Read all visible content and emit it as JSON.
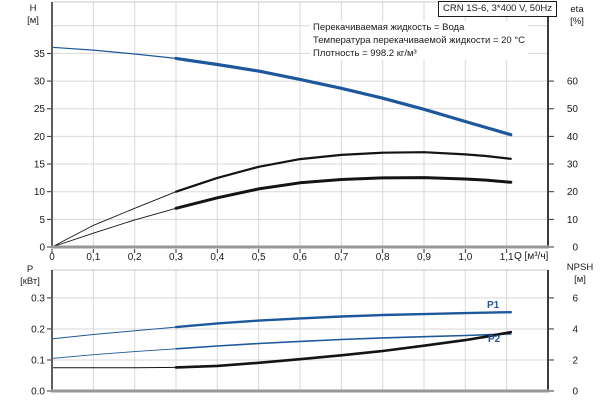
{
  "colors": {
    "curve_blue": "#1e589c",
    "curve_black": "#141414",
    "grid": "#d8d8d8",
    "axis": "#5e5e5e",
    "text": "#1a1a1a"
  },
  "chart_data": [
    {
      "type": "line",
      "name": "head-efficiency-chart",
      "title": "CRN 1S-6, 3*400 V, 50Hz",
      "annotations": [
        "Перекачиваемая жидкость = Вода",
        "Температура перекачиваемой жидкости = 20 °C",
        "Плотность = 998.2 кг/м³"
      ],
      "xlabel": "Q [м³/ч]",
      "x_range": [
        0,
        1.2
      ],
      "x_tick_values": [
        0,
        0.1,
        0.2,
        0.3,
        0.4,
        0.5,
        0.6,
        0.7,
        0.8,
        0.9,
        1.0,
        1.1
      ],
      "x_tick_labels": [
        "0",
        "0,1",
        "0,2",
        "0,3",
        "0,4",
        "0,5",
        "0,6",
        "0,7",
        "0,8",
        "0,9",
        "1,0",
        "1,1"
      ],
      "left_axis": {
        "title": [
          "H",
          "[м]"
        ],
        "unit": "м",
        "range": [
          0,
          44.3
        ],
        "tick_values": [
          0,
          5,
          10,
          15,
          20,
          25,
          30,
          35
        ],
        "tick_labels": [
          "0",
          "5",
          "10",
          "15",
          "20",
          "25",
          "30",
          "35"
        ],
        "grid_values": [
          5,
          10,
          15,
          20,
          25,
          30,
          35,
          40
        ]
      },
      "right_axis": {
        "title": [
          "eta",
          "[%]"
        ],
        "unit": "%",
        "range": [
          0,
          88.6
        ],
        "tick_values": [
          0,
          10,
          20,
          30,
          40,
          50,
          60
        ],
        "tick_labels": [
          "0",
          "10",
          "20",
          "30",
          "40",
          "50",
          "60"
        ]
      },
      "series": [
        {
          "name": "H",
          "axis": "left",
          "color": "#1e589c",
          "thick_from": 0.3,
          "points": [
            [
              0,
              36.1
            ],
            [
              0.1,
              35.6
            ],
            [
              0.2,
              34.9
            ],
            [
              0.3,
              34.1
            ],
            [
              0.4,
              33.0
            ],
            [
              0.5,
              31.8
            ],
            [
              0.6,
              30.3
            ],
            [
              0.7,
              28.7
            ],
            [
              0.8,
              26.9
            ],
            [
              0.9,
              24.9
            ],
            [
              1.0,
              22.7
            ],
            [
              1.05,
              21.6
            ],
            [
              1.11,
              20.3
            ]
          ]
        },
        {
          "name": "eta1",
          "axis": "right",
          "color": "#141414",
          "thick_from": 0.3,
          "points": [
            [
              0,
              0
            ],
            [
              0.1,
              7.8
            ],
            [
              0.2,
              14.0
            ],
            [
              0.3,
              20.0
            ],
            [
              0.4,
              25.0
            ],
            [
              0.5,
              29.0
            ],
            [
              0.6,
              31.8
            ],
            [
              0.7,
              33.3
            ],
            [
              0.8,
              34.1
            ],
            [
              0.9,
              34.3
            ],
            [
              1.0,
              33.5
            ],
            [
              1.05,
              32.9
            ],
            [
              1.11,
              31.9
            ]
          ]
        },
        {
          "name": "eta2",
          "axis": "right",
          "color": "#141414",
          "thick_from": 0.3,
          "points": [
            [
              0,
              0
            ],
            [
              0.1,
              5.0
            ],
            [
              0.2,
              9.8
            ],
            [
              0.3,
              14.0
            ],
            [
              0.4,
              17.8
            ],
            [
              0.5,
              21.0
            ],
            [
              0.6,
              23.2
            ],
            [
              0.7,
              24.4
            ],
            [
              0.8,
              25.0
            ],
            [
              0.9,
              25.1
            ],
            [
              1.0,
              24.6
            ],
            [
              1.05,
              24.2
            ],
            [
              1.11,
              23.4
            ]
          ]
        }
      ]
    },
    {
      "type": "line",
      "name": "power-npsh-chart",
      "x_range": [
        0,
        1.2
      ],
      "x_tick_values": [
        0,
        0.1,
        0.2,
        0.3,
        0.4,
        0.5,
        0.6,
        0.7,
        0.8,
        0.9,
        1.0,
        1.1
      ],
      "x_tick_labels": [],
      "left_axis": {
        "title": [
          "P",
          "[кВт]"
        ],
        "unit": "кВт",
        "range": [
          0,
          0.39
        ],
        "tick_values": [
          0,
          0.1,
          0.2,
          0.3
        ],
        "tick_labels": [
          "0.0",
          "0.1",
          "0.2",
          "0.3"
        ],
        "grid_values": [
          0.1,
          0.2,
          0.3
        ]
      },
      "right_axis": {
        "title": [
          "NPSH",
          "[м]"
        ],
        "unit": "м",
        "range": [
          0,
          7.8
        ],
        "tick_values": [
          0,
          2,
          4,
          6
        ],
        "tick_labels": [
          "0",
          "2",
          "4",
          "6"
        ]
      },
      "series": [
        {
          "name": "P1",
          "label": "P1",
          "axis": "left",
          "color": "#1e589c",
          "thick_from": 0.3,
          "points": [
            [
              0,
              0.168
            ],
            [
              0.1,
              0.182
            ],
            [
              0.2,
              0.194
            ],
            [
              0.3,
              0.206
            ],
            [
              0.4,
              0.218
            ],
            [
              0.5,
              0.227
            ],
            [
              0.6,
              0.234
            ],
            [
              0.7,
              0.24
            ],
            [
              0.8,
              0.245
            ],
            [
              0.9,
              0.248
            ],
            [
              1.0,
              0.251
            ],
            [
              1.11,
              0.254
            ]
          ]
        },
        {
          "name": "P2",
          "label": "P2",
          "axis": "left",
          "color": "#1e589c",
          "thick_from": 0.3,
          "points": [
            [
              0,
              0.105
            ],
            [
              0.1,
              0.117
            ],
            [
              0.2,
              0.127
            ],
            [
              0.3,
              0.136
            ],
            [
              0.4,
              0.145
            ],
            [
              0.5,
              0.153
            ],
            [
              0.6,
              0.16
            ],
            [
              0.7,
              0.166
            ],
            [
              0.8,
              0.171
            ],
            [
              0.9,
              0.175
            ],
            [
              1.0,
              0.179
            ],
            [
              1.11,
              0.184
            ]
          ]
        },
        {
          "name": "NPSH",
          "axis": "right",
          "color": "#141414",
          "thick_from": 0.3,
          "points": [
            [
              0,
              1.5
            ],
            [
              0.1,
              1.5
            ],
            [
              0.2,
              1.5
            ],
            [
              0.3,
              1.52
            ],
            [
              0.4,
              1.62
            ],
            [
              0.5,
              1.82
            ],
            [
              0.6,
              2.05
            ],
            [
              0.7,
              2.3
            ],
            [
              0.8,
              2.58
            ],
            [
              0.9,
              2.92
            ],
            [
              1.0,
              3.28
            ],
            [
              1.05,
              3.5
            ],
            [
              1.11,
              3.8
            ]
          ]
        }
      ]
    }
  ]
}
